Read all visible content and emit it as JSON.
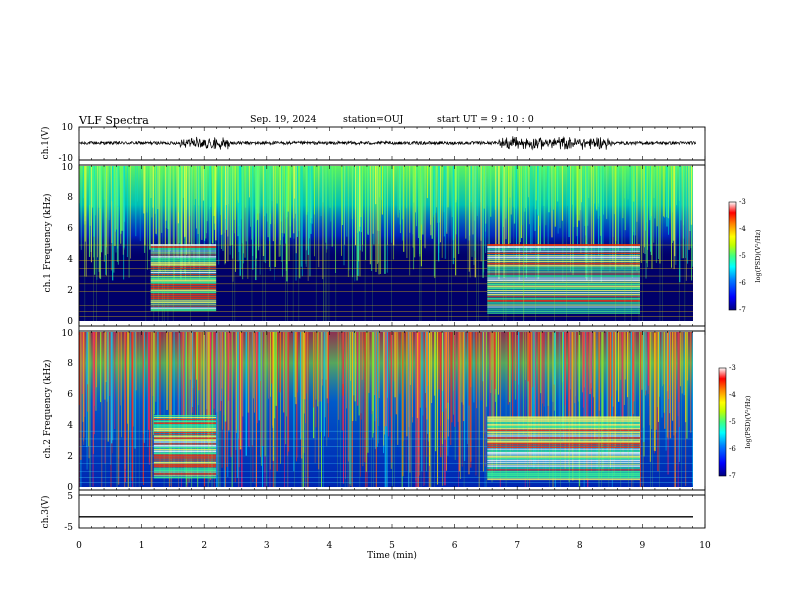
{
  "header": {
    "title": "VLF Spectra",
    "date": "Sep. 19, 2024",
    "station": "station=OUJ",
    "start_ut": "start UT =  9 : 10 : 0"
  },
  "colors": {
    "spectrogram_background": "#00006a",
    "waveform_line": "#000000",
    "harmonic_band_color": "#ffd400",
    "strong_band_color": "#ff2a00",
    "noise_stripe_color": "#88ff44",
    "colormap": [
      "#00007f",
      "#0000ff",
      "#0080ff",
      "#00ffff",
      "#40ff80",
      "#c0ff00",
      "#ffff00",
      "#ff8000",
      "#ff0000",
      "#ff8080",
      "#ffffff"
    ]
  },
  "chart_data": [
    {
      "type": "line",
      "name": "ch.1 waveform",
      "ylabel": "ch.1(V)",
      "ylim": [
        -10,
        10
      ],
      "y_ticks": [
        "10",
        "-10"
      ],
      "xlim": [
        0,
        10
      ],
      "baseline": 0,
      "typical_amplitude": 1,
      "bursts": [
        [
          1.6,
          2.4
        ],
        [
          6.7,
          8.5
        ]
      ],
      "burst_amplitude": 3
    },
    {
      "type": "heatmap",
      "name": "ch.1 spectrogram",
      "ylabel": "ch.1 Frequency (kHz)",
      "ylim": [
        0,
        10
      ],
      "y_ticks": [
        "0",
        "2",
        "4",
        "6",
        "8",
        "10"
      ],
      "xlim": [
        0,
        9.85
      ],
      "transmitter_bursts": [
        {
          "t_start": 1.15,
          "t_end": 2.2,
          "f_low": 0.7,
          "f_high": 4.9
        },
        {
          "t_start": 6.55,
          "t_end": 9.0,
          "f_low": 0.5,
          "f_high": 4.9
        }
      ],
      "noise_floor_above_khz": 5.5,
      "colorbar": {
        "label": "log(PSD)(V²/Hz)",
        "range": [
          -7,
          -3
        ],
        "ticks": [
          "-3",
          "-4",
          "-5",
          "-6",
          "-7"
        ]
      }
    },
    {
      "type": "heatmap",
      "name": "ch.2 spectrogram",
      "ylabel": "ch.2 Frequency (kHz)",
      "ylim": [
        0,
        10
      ],
      "y_ticks": [
        "0",
        "2",
        "4",
        "6",
        "8",
        "10"
      ],
      "xlim": [
        0,
        9.85
      ],
      "transmitter_bursts": [
        {
          "t_start": 1.2,
          "t_end": 2.2,
          "f_low": 0.6,
          "f_high": 4.6
        },
        {
          "t_start": 6.55,
          "t_end": 9.0,
          "f_low": 0.5,
          "f_high": 4.5
        }
      ],
      "noise_floor_above_khz": 5.5,
      "colorbar": {
        "label": "log(PSD)(V²/Hz)",
        "range": [
          -7,
          -3
        ],
        "ticks": [
          "-3",
          "-4",
          "-5",
          "-6",
          "-7"
        ]
      }
    },
    {
      "type": "line",
      "name": "ch.3 waveform",
      "ylabel": "ch.3(V)",
      "ylim": [
        -5,
        5
      ],
      "y_ticks": [
        "5",
        "-5"
      ],
      "xlim": [
        0,
        10
      ],
      "constant_value": -1.5
    }
  ],
  "x_axis": {
    "label": "Time (min)",
    "range": [
      0,
      10
    ],
    "ticks": [
      "0",
      "1",
      "2",
      "3",
      "4",
      "5",
      "6",
      "7",
      "8",
      "9",
      "10"
    ]
  }
}
